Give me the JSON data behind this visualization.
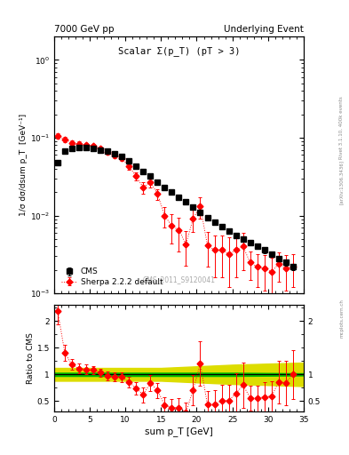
{
  "title_left": "7000 GeV pp",
  "title_right": "Underlying Event",
  "plot_label": "Scalar Σ(p_T) (pT > 3)",
  "cms_label": "CMS_2011_S9120041",
  "rivet_label": "Rivet 3.1.10, 400k events",
  "arxiv_label": "[arXiv:1306.3436]",
  "mcplots_label": "mcplots.cern.ch",
  "xlabel": "sum p_T [GeV]",
  "ylabel_main": "1/σ dσ/dsum p_T  [GeV⁻¹]",
  "ylabel_ratio": "Ratio to CMS",
  "cms_x": [
    0.5,
    1.5,
    2.5,
    3.5,
    4.5,
    5.5,
    6.5,
    7.5,
    8.5,
    9.5,
    10.5,
    11.5,
    12.5,
    13.5,
    14.5,
    15.5,
    16.5,
    17.5,
    18.5,
    19.5,
    20.5,
    21.5,
    22.5,
    23.5,
    24.5,
    25.5,
    26.5,
    27.5,
    28.5,
    29.5,
    30.5,
    31.5,
    32.5,
    33.5
  ],
  "cms_y": [
    0.048,
    0.068,
    0.073,
    0.075,
    0.074,
    0.072,
    0.07,
    0.067,
    0.062,
    0.057,
    0.05,
    0.043,
    0.037,
    0.032,
    0.027,
    0.023,
    0.02,
    0.017,
    0.015,
    0.013,
    0.011,
    0.0095,
    0.0082,
    0.0072,
    0.0063,
    0.0056,
    0.005,
    0.0045,
    0.004,
    0.0036,
    0.0032,
    0.0028,
    0.0025,
    0.0022
  ],
  "cms_yerr": [
    0.003,
    0.003,
    0.003,
    0.003,
    0.003,
    0.003,
    0.003,
    0.003,
    0.002,
    0.002,
    0.002,
    0.002,
    0.002,
    0.002,
    0.001,
    0.001,
    0.001,
    0.001,
    0.001,
    0.001,
    0.0008,
    0.0007,
    0.0006,
    0.0006,
    0.0005,
    0.0004,
    0.0004,
    0.0003,
    0.0003,
    0.0003,
    0.0002,
    0.0002,
    0.0002,
    0.0002
  ],
  "sherpa_x": [
    0.5,
    1.5,
    2.5,
    3.5,
    4.5,
    5.5,
    6.5,
    7.5,
    8.5,
    9.5,
    10.5,
    11.5,
    12.5,
    13.5,
    14.5,
    15.5,
    16.5,
    17.5,
    18.5,
    19.5,
    20.5,
    21.5,
    22.5,
    23.5,
    24.5,
    25.5,
    26.5,
    27.5,
    28.5,
    29.5,
    30.5,
    31.5,
    32.5,
    33.5
  ],
  "sherpa_y": [
    0.105,
    0.095,
    0.086,
    0.083,
    0.081,
    0.078,
    0.072,
    0.065,
    0.059,
    0.054,
    0.043,
    0.032,
    0.023,
    0.027,
    0.019,
    0.01,
    0.0074,
    0.0065,
    0.0043,
    0.0092,
    0.0132,
    0.0042,
    0.0036,
    0.0036,
    0.0032,
    0.0036,
    0.004,
    0.0025,
    0.0022,
    0.0021,
    0.0019,
    0.0024,
    0.0021,
    0.0022
  ],
  "sherpa_yerr": [
    0.008,
    0.007,
    0.006,
    0.006,
    0.005,
    0.005,
    0.005,
    0.005,
    0.004,
    0.004,
    0.004,
    0.004,
    0.004,
    0.004,
    0.003,
    0.003,
    0.003,
    0.003,
    0.002,
    0.003,
    0.004,
    0.002,
    0.002,
    0.002,
    0.002,
    0.002,
    0.002,
    0.001,
    0.001,
    0.001,
    0.001,
    0.001,
    0.001,
    0.001
  ],
  "ratio_x": [
    0.5,
    1.5,
    2.5,
    3.5,
    4.5,
    5.5,
    6.5,
    7.5,
    8.5,
    9.5,
    10.5,
    11.5,
    12.5,
    13.5,
    14.5,
    15.5,
    16.5,
    17.5,
    18.5,
    19.5,
    20.5,
    21.5,
    22.5,
    23.5,
    24.5,
    25.5,
    26.5,
    27.5,
    28.5,
    29.5,
    30.5,
    31.5,
    32.5,
    33.5
  ],
  "ratio_y": [
    2.19,
    1.4,
    1.18,
    1.11,
    1.09,
    1.08,
    1.03,
    0.97,
    0.95,
    0.95,
    0.86,
    0.74,
    0.62,
    0.84,
    0.7,
    0.43,
    0.37,
    0.38,
    0.29,
    0.71,
    1.2,
    0.44,
    0.44,
    0.5,
    0.51,
    0.64,
    0.8,
    0.56,
    0.55,
    0.58,
    0.59,
    0.86,
    0.84,
    1.0
  ],
  "ratio_yerr": [
    0.25,
    0.15,
    0.1,
    0.09,
    0.09,
    0.08,
    0.08,
    0.08,
    0.08,
    0.09,
    0.1,
    0.12,
    0.14,
    0.15,
    0.14,
    0.15,
    0.17,
    0.18,
    0.18,
    0.28,
    0.42,
    0.25,
    0.26,
    0.3,
    0.3,
    0.38,
    0.42,
    0.23,
    0.24,
    0.27,
    0.28,
    0.4,
    0.42,
    0.46
  ],
  "green_band_x": [
    0,
    5,
    10,
    15,
    20,
    25,
    30,
    35
  ],
  "green_band_lo": [
    0.97,
    0.97,
    0.97,
    0.97,
    0.97,
    0.97,
    0.975,
    0.98
  ],
  "green_band_hi": [
    1.03,
    1.03,
    1.03,
    1.03,
    1.03,
    1.03,
    1.025,
    1.02
  ],
  "yellow_band_x": [
    0,
    5,
    10,
    15,
    20,
    25,
    30,
    35
  ],
  "yellow_band_lo": [
    0.88,
    0.88,
    0.88,
    0.88,
    0.85,
    0.82,
    0.8,
    0.78
  ],
  "yellow_band_hi": [
    1.12,
    1.12,
    1.12,
    1.12,
    1.15,
    1.18,
    1.2,
    1.22
  ],
  "xlim": [
    0,
    35
  ],
  "ylim_main_lo": 0.001,
  "ylim_main_hi": 2.0,
  "ylim_ratio_lo": 0.3,
  "ylim_ratio_hi": 2.3,
  "cms_color": "#000000",
  "sherpa_color": "#ff0000",
  "green_color": "#00bb00",
  "yellow_color": "#dddd00",
  "background_color": "white",
  "fig_width": 3.93,
  "fig_height": 5.12
}
